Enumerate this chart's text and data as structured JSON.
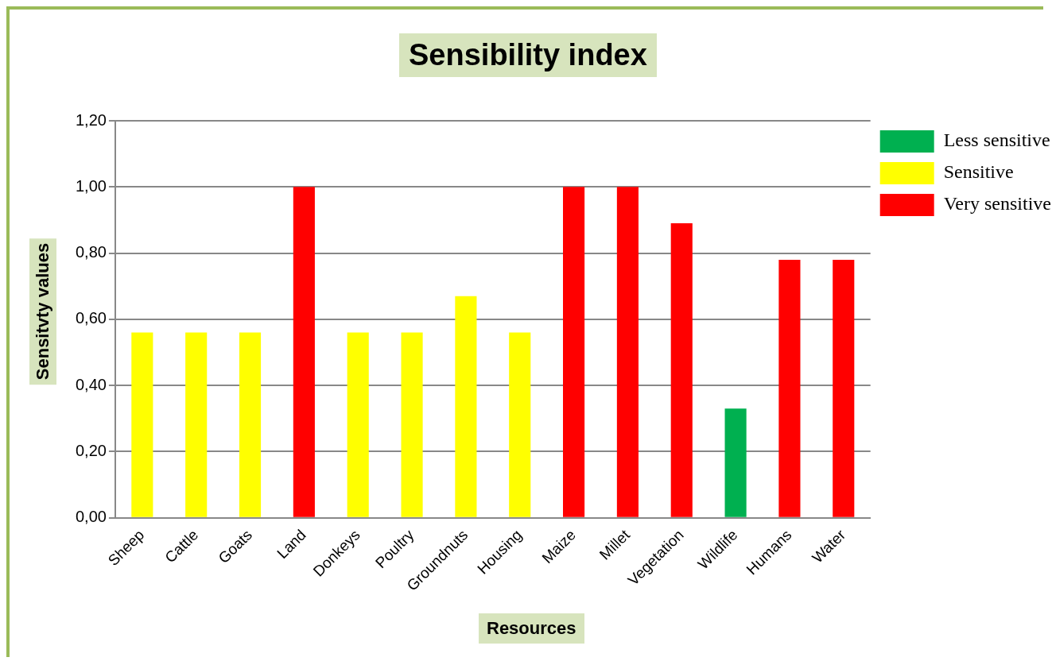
{
  "chart_data": {
    "type": "bar",
    "title": "Sensibility index",
    "xlabel": "Resources",
    "ylabel": "Sensitvty values",
    "categories": [
      "Sheep",
      "Cattle",
      "Goats",
      "Land",
      "Donkeys",
      "Poultry",
      "Groundnuts",
      "Housing",
      "Maize",
      "Millet",
      "Vegetation",
      "Wildlife",
      "Humans",
      "Water"
    ],
    "series": [
      {
        "name": "Less sensitive",
        "color": "#00b050",
        "values": [
          null,
          null,
          null,
          null,
          null,
          null,
          null,
          null,
          null,
          null,
          null,
          0.33,
          null,
          null
        ]
      },
      {
        "name": "Sensitive",
        "color": "#ffff00",
        "values": [
          0.56,
          0.56,
          0.56,
          null,
          0.56,
          0.56,
          0.67,
          0.56,
          null,
          null,
          null,
          null,
          null,
          null
        ]
      },
      {
        "name": "Very sensitive",
        "color": "#ff0000",
        "values": [
          null,
          null,
          null,
          1.0,
          null,
          null,
          null,
          null,
          1.0,
          1.0,
          0.89,
          null,
          0.78,
          0.78
        ]
      }
    ],
    "ylim": [
      0,
      1.2
    ],
    "yticks": [
      {
        "value": 0,
        "label": "0,00"
      },
      {
        "value": 0.2,
        "label": "0,20"
      },
      {
        "value": 0.4,
        "label": "0,40"
      },
      {
        "value": 0.6,
        "label": "0,60"
      },
      {
        "value": 0.8,
        "label": "0,80"
      },
      {
        "value": 1.0,
        "label": "1,00"
      },
      {
        "value": 1.2,
        "label": "1,20"
      }
    ],
    "grid": "y",
    "legend": "top right"
  }
}
